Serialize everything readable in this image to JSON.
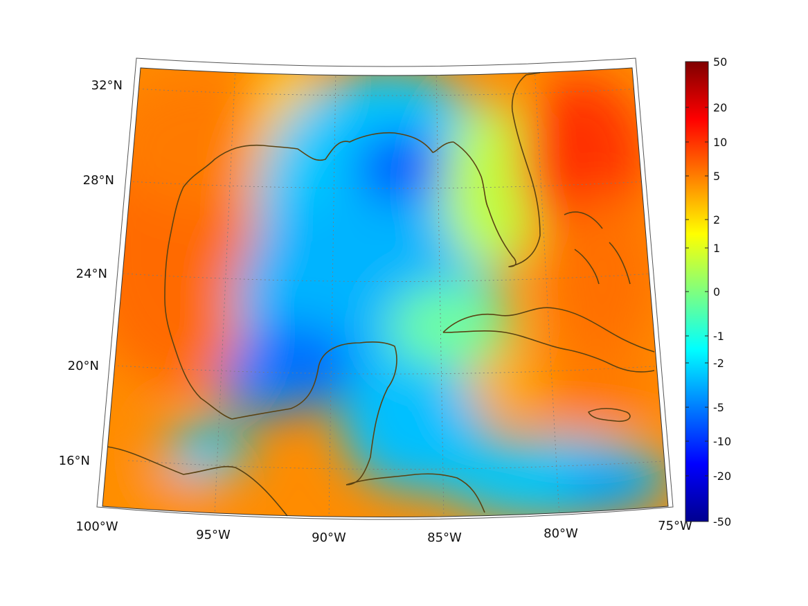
{
  "map": {
    "projection": "lambert-conformal-conic",
    "extent": {
      "lon": [
        -100,
        -75
      ],
      "lat": [
        14,
        33
      ]
    },
    "graticule_step": {
      "lon": 5,
      "lat": 4
    },
    "coastline_color": "#5a4212",
    "lon_labels": [
      "100°W",
      "95°W",
      "90°W",
      "85°W",
      "80°W",
      "75°W"
    ],
    "lat_labels": [
      "16°N",
      "20°N",
      "24°N",
      "28°N",
      "32°N"
    ]
  },
  "colorbar": {
    "colormap": "jet",
    "tick_labels": [
      "50",
      "20",
      "10",
      "5",
      "2",
      "1",
      "0",
      "-1",
      "-2",
      "-5",
      "-10",
      "-20",
      "-50"
    ],
    "colors": [
      "#00008f",
      "#0000ff",
      "#007fff",
      "#00ffff",
      "#7fff7f",
      "#ffff00",
      "#ff7f00",
      "#ff0000",
      "#7f0000"
    ]
  }
}
